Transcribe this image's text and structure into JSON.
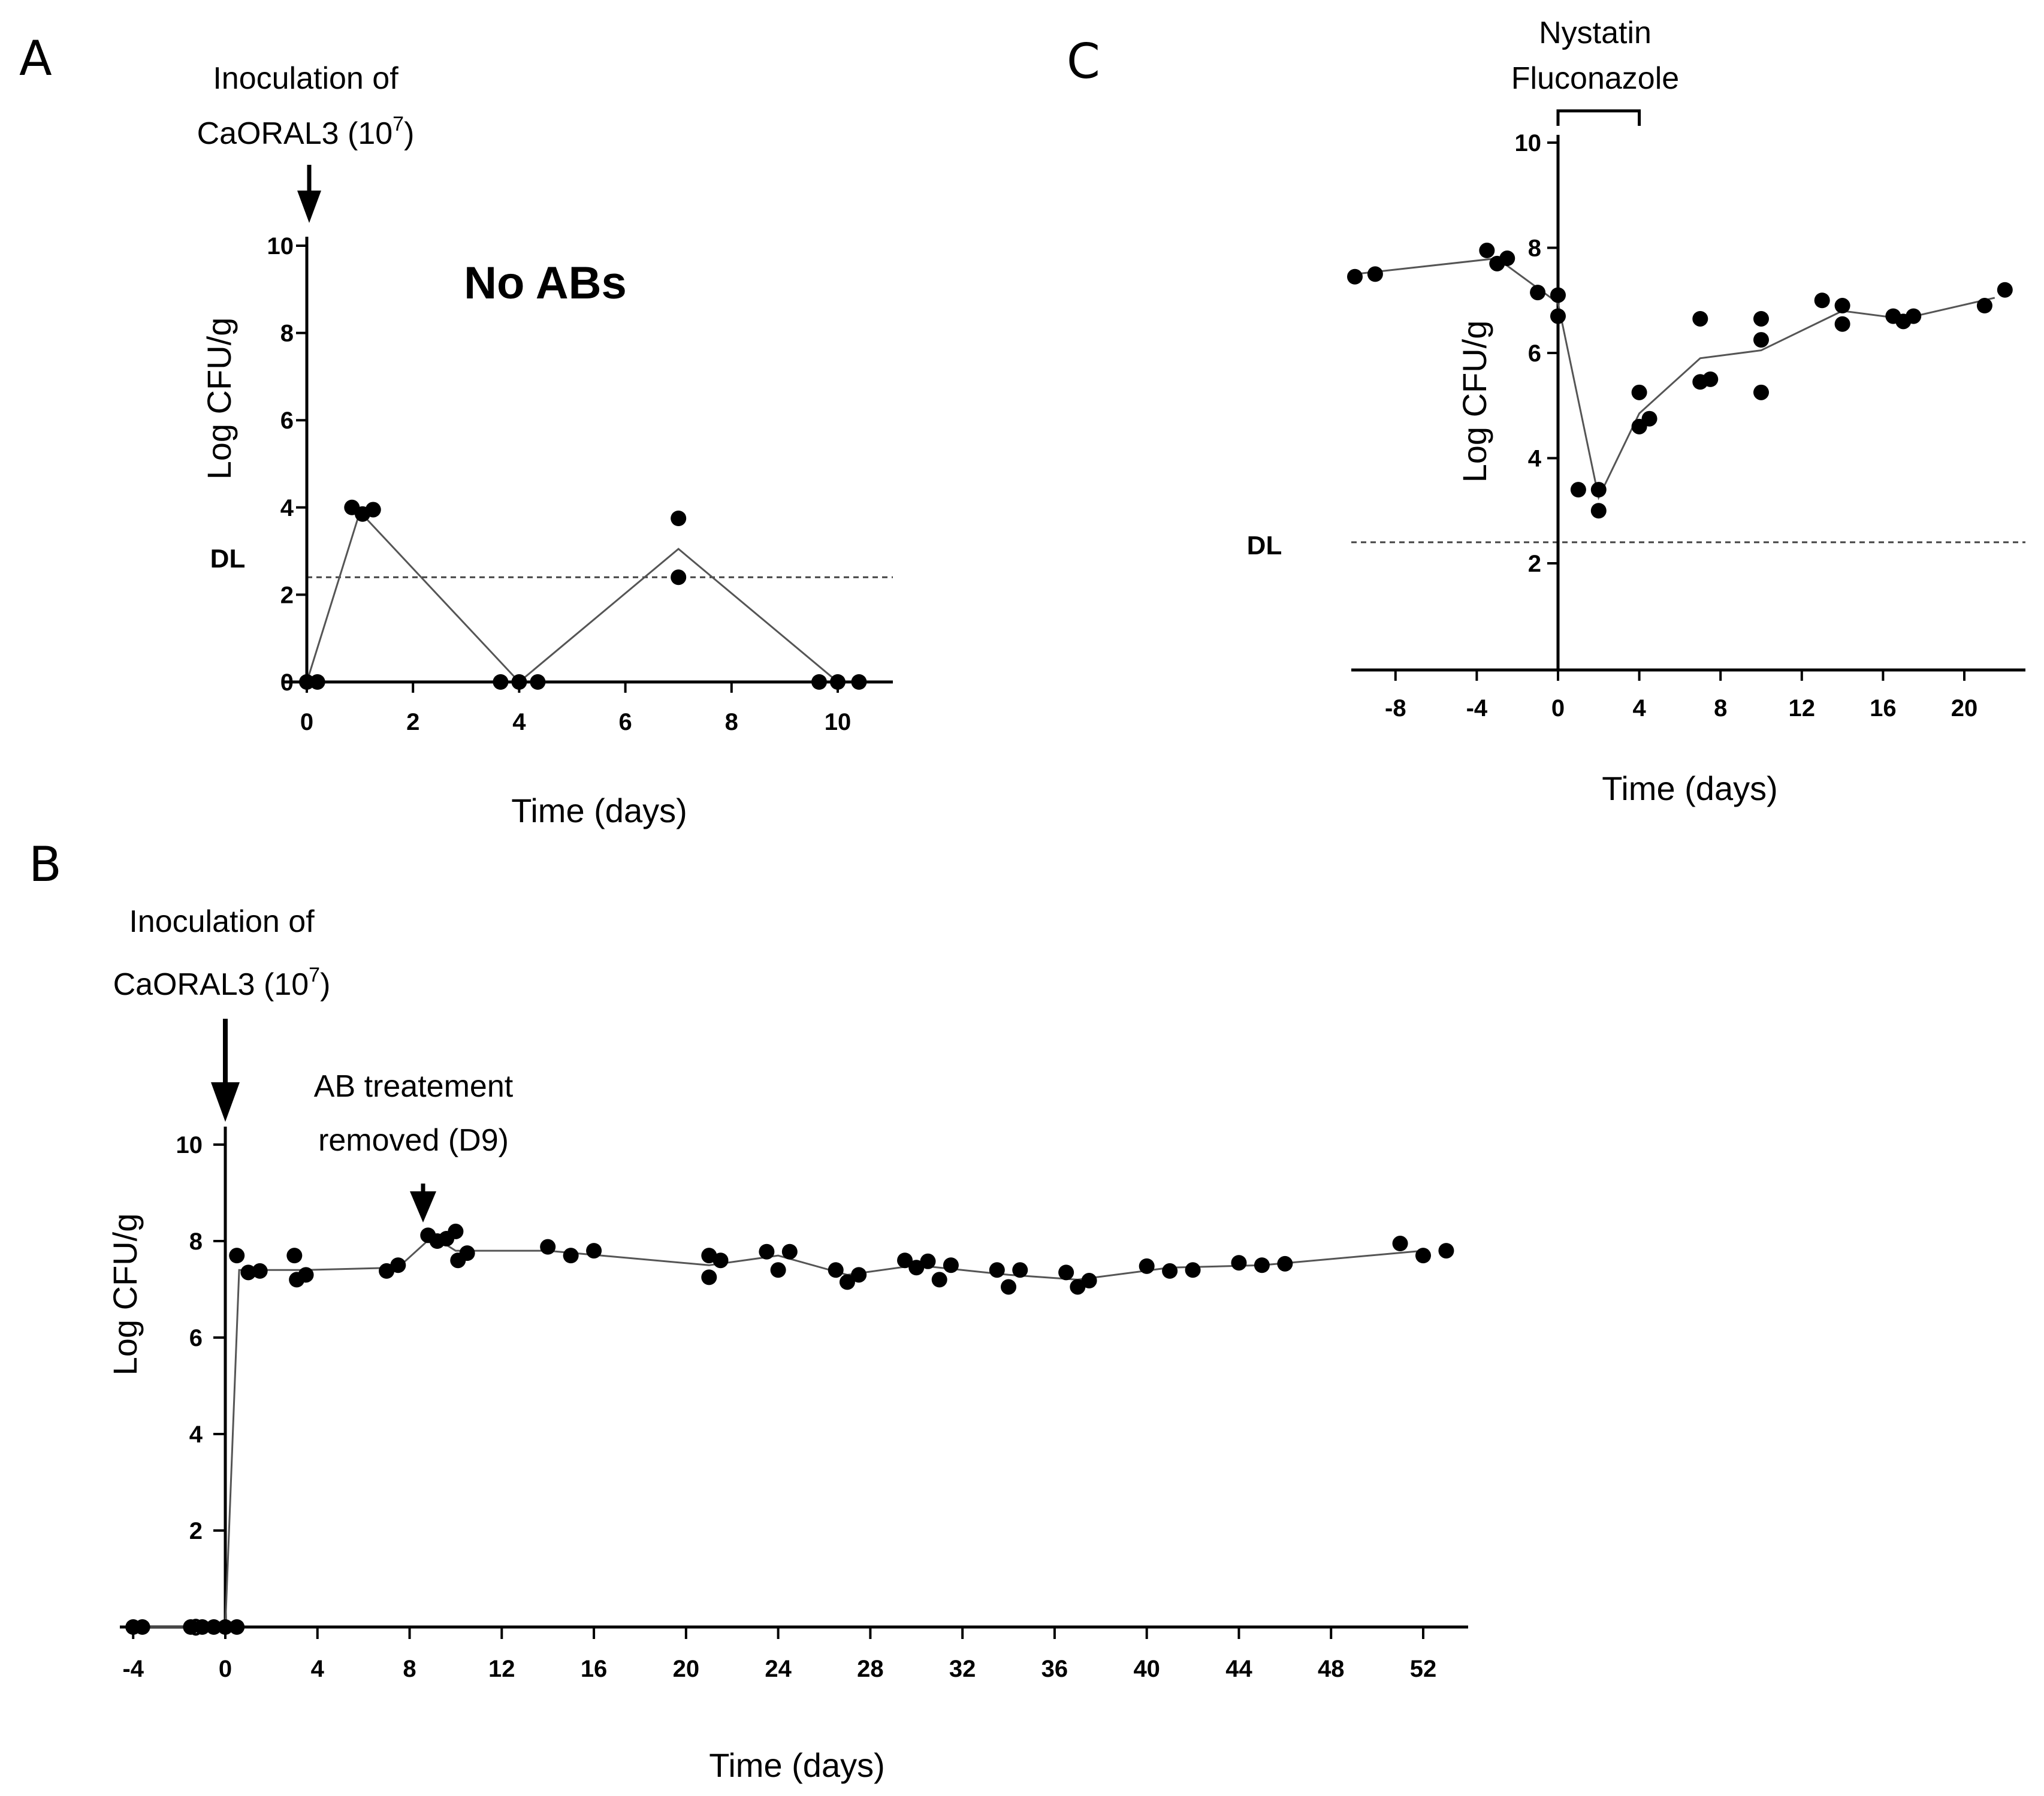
{
  "colors": {
    "ink": "#000000",
    "line": "#555555",
    "dashed": "#444444",
    "ylabel_b": "#8a8a8a"
  },
  "panels": {
    "A": {
      "letter": "A",
      "annotation": [
        "Inoculation of",
        "CaORAL3 (10",
        "7",
        ")"
      ],
      "title": "No ABs",
      "dl_label": "DL"
    },
    "B": {
      "letter": "B",
      "annotation": [
        "Inoculation of",
        "CaORAL3 (10",
        "7",
        ")"
      ],
      "annotation2": [
        "AB treatement",
        "removed (D9)"
      ]
    },
    "C": {
      "letter": "C",
      "annotation": [
        "Nystatin",
        "Fluconazole"
      ],
      "dl_label": "DL"
    }
  },
  "chart_data": [
    {
      "panel": "A",
      "type": "scatter",
      "title": "No ABs",
      "xlabel": "Time (days)",
      "ylabel": "Log CFU/g",
      "xlim": [
        0,
        11
      ],
      "ylim": [
        0,
        10
      ],
      "xticks": [
        0,
        2,
        4,
        6,
        8,
        10
      ],
      "yticks": [
        0,
        2,
        4,
        6,
        8,
        10
      ],
      "detection_limit": 2.4,
      "points": [
        [
          0,
          0
        ],
        [
          0.2,
          0
        ],
        [
          0.85,
          4.0
        ],
        [
          1.05,
          3.85
        ],
        [
          1.25,
          3.95
        ],
        [
          3.65,
          0
        ],
        [
          4.0,
          0
        ],
        [
          4.35,
          0
        ],
        [
          7.0,
          3.75
        ],
        [
          7.0,
          2.4
        ],
        [
          9.65,
          0
        ],
        [
          10.0,
          0
        ],
        [
          10.4,
          0
        ]
      ],
      "mean_line": [
        [
          0,
          0
        ],
        [
          1,
          3.9
        ],
        [
          4,
          0
        ],
        [
          7,
          3.05
        ],
        [
          10,
          0
        ]
      ]
    },
    {
      "panel": "B",
      "type": "scatter",
      "title": "",
      "xlabel": "Time (days)",
      "ylabel": "Log CFU/g",
      "xlim": [
        -4,
        54
      ],
      "ylim": [
        0,
        10
      ],
      "xticks": [
        -4,
        0,
        4,
        8,
        12,
        16,
        20,
        24,
        28,
        32,
        36,
        40,
        44,
        48,
        52
      ],
      "yticks": [
        0,
        2,
        4,
        6,
        8,
        10
      ],
      "points": [
        [
          -4,
          0
        ],
        [
          -3.6,
          0
        ],
        [
          -1.5,
          0
        ],
        [
          -1,
          0
        ],
        [
          -0.5,
          0
        ],
        [
          0,
          0
        ],
        [
          0.5,
          0
        ],
        [
          0.5,
          7.7
        ],
        [
          1,
          7.35
        ],
        [
          1.5,
          7.38
        ],
        [
          3.0,
          7.7
        ],
        [
          3.1,
          7.2
        ],
        [
          3.5,
          7.3
        ],
        [
          7,
          7.38
        ],
        [
          7.5,
          7.5
        ],
        [
          8.8,
          8.12
        ],
        [
          9.2,
          8.0
        ],
        [
          9.6,
          8.05
        ],
        [
          10,
          8.2
        ],
        [
          10.1,
          7.6
        ],
        [
          10.5,
          7.75
        ],
        [
          14,
          7.88
        ],
        [
          15,
          7.7
        ],
        [
          16,
          7.8
        ],
        [
          21,
          7.7
        ],
        [
          21,
          7.25
        ],
        [
          21.5,
          7.6
        ],
        [
          23.5,
          7.78
        ],
        [
          24,
          7.4
        ],
        [
          24.5,
          7.78
        ],
        [
          26.5,
          7.4
        ],
        [
          27,
          7.15
        ],
        [
          27.5,
          7.3
        ],
        [
          29.5,
          7.6
        ],
        [
          30,
          7.45
        ],
        [
          30.5,
          7.58
        ],
        [
          31,
          7.2
        ],
        [
          31.5,
          7.5
        ],
        [
          33.5,
          7.4
        ],
        [
          34,
          7.05
        ],
        [
          34.5,
          7.4
        ],
        [
          36.5,
          7.35
        ],
        [
          37,
          7.05
        ],
        [
          37.5,
          7.18
        ],
        [
          40,
          7.48
        ],
        [
          41,
          7.38
        ],
        [
          42,
          7.4
        ],
        [
          44,
          7.55
        ],
        [
          45,
          7.5
        ],
        [
          46,
          7.53
        ],
        [
          51,
          7.95
        ],
        [
          52,
          7.7
        ],
        [
          53,
          7.8
        ]
      ],
      "mean_line": [
        [
          -4,
          0
        ],
        [
          0,
          0
        ],
        [
          0.6,
          7.4
        ],
        [
          1.5,
          7.4
        ],
        [
          3.5,
          7.4
        ],
        [
          7.5,
          7.45
        ],
        [
          9,
          8.1
        ],
        [
          10,
          7.8
        ],
        [
          14,
          7.8
        ],
        [
          21,
          7.5
        ],
        [
          24,
          7.7
        ],
        [
          27,
          7.3
        ],
        [
          30,
          7.5
        ],
        [
          34,
          7.3
        ],
        [
          37,
          7.2
        ],
        [
          41,
          7.45
        ],
        [
          45,
          7.5
        ],
        [
          52,
          7.8
        ]
      ]
    },
    {
      "panel": "C",
      "type": "scatter",
      "title": "",
      "xlabel": "Time (days)",
      "ylabel": "Log CFU/g",
      "xlim": [
        -10,
        23
      ],
      "ylim": [
        0,
        10
      ],
      "xticks": [
        -8,
        -4,
        0,
        4,
        8,
        12,
        16,
        20
      ],
      "yticks": [
        2,
        4,
        6,
        8,
        10
      ],
      "detection_limit": 2.4,
      "treatment_bracket": [
        0,
        4
      ],
      "points": [
        [
          -10,
          7.45
        ],
        [
          -9,
          7.5
        ],
        [
          -3.5,
          7.95
        ],
        [
          -3,
          7.7
        ],
        [
          -2.5,
          7.8
        ],
        [
          -1,
          7.15
        ],
        [
          0,
          7.1
        ],
        [
          0,
          6.7
        ],
        [
          1,
          3.4
        ],
        [
          2,
          3.4
        ],
        [
          2,
          3.0
        ],
        [
          4,
          5.25
        ],
        [
          4,
          4.6
        ],
        [
          4.5,
          4.75
        ],
        [
          7,
          6.65
        ],
        [
          7,
          5.45
        ],
        [
          7.5,
          5.5
        ],
        [
          10,
          6.65
        ],
        [
          10,
          6.25
        ],
        [
          10,
          5.25
        ],
        [
          13,
          7.0
        ],
        [
          14,
          6.9
        ],
        [
          14,
          6.55
        ],
        [
          16.5,
          6.7
        ],
        [
          17,
          6.6
        ],
        [
          17.5,
          6.7
        ],
        [
          21,
          6.9
        ],
        [
          22,
          7.2
        ]
      ],
      "mean_line": [
        [
          -10,
          7.5
        ],
        [
          -3,
          7.8
        ],
        [
          0,
          6.95
        ],
        [
          2,
          3.25
        ],
        [
          4,
          4.85
        ],
        [
          7,
          5.9
        ],
        [
          10,
          6.05
        ],
        [
          14,
          6.8
        ],
        [
          17,
          6.65
        ],
        [
          21.5,
          7.05
        ]
      ]
    }
  ]
}
